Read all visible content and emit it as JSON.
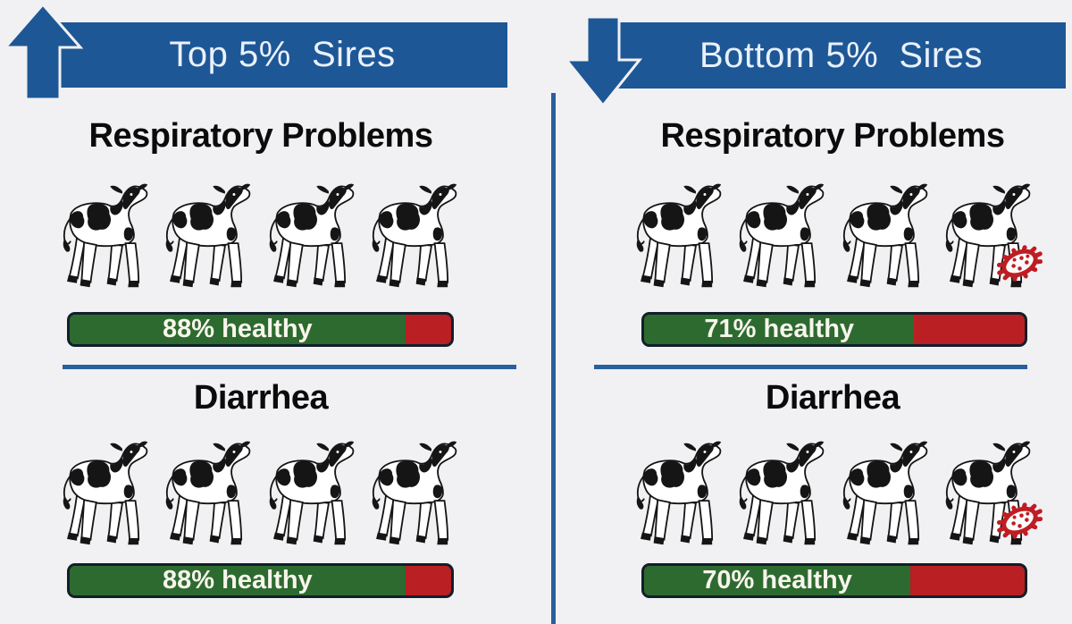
{
  "colors": {
    "bg": "#f1f1f3",
    "blue": "#1E5796",
    "divider": "#2A5F9E",
    "green": "#2D6A2F",
    "red": "#B91F23",
    "barBorder": "#111F2A",
    "barText": "#F7F5EC",
    "germ": "#BF1D23",
    "ink": "#151515"
  },
  "panels": [
    {
      "id": "top-sires",
      "banner": {
        "label": "Top 5%  Sires",
        "arrow_direction": "up"
      },
      "sections": [
        {
          "title": "Respiratory Problems",
          "calf_count": 4,
          "sick_calf": false,
          "bar": {
            "percent": 88,
            "label": "88% healthy"
          }
        },
        {
          "title": "Diarrhea",
          "calf_count": 4,
          "sick_calf": false,
          "bar": {
            "percent": 88,
            "label": "88% healthy"
          }
        }
      ]
    },
    {
      "id": "bottom-sires",
      "banner": {
        "label": "Bottom 5%  Sires",
        "arrow_direction": "down"
      },
      "sections": [
        {
          "title": "Respiratory Problems",
          "calf_count": 4,
          "sick_calf": true,
          "bar": {
            "percent": 71,
            "label": "71% healthy"
          }
        },
        {
          "title": "Diarrhea",
          "calf_count": 4,
          "sick_calf": true,
          "bar": {
            "percent": 70,
            "label": "70% healthy"
          }
        }
      ]
    }
  ],
  "icons": {
    "calf": "holstein-calf-icon",
    "germ": "pathogen-germ-icon",
    "up_arrow": "up-arrow-icon",
    "down_arrow": "down-arrow-icon"
  },
  "chart_data": {
    "type": "bar",
    "categories": [
      "Respiratory Problems",
      "Diarrhea"
    ],
    "series": [
      {
        "name": "Top 5% Sires",
        "values": [
          88,
          88
        ]
      },
      {
        "name": "Bottom 5% Sires",
        "values": [
          71,
          70
        ]
      }
    ],
    "value_label": "% healthy",
    "ylim": [
      0,
      100
    ],
    "notes": "Pictograph infographic: 4 calves per category; bottom-5% panels mark the last calf with a red pathogen icon. Green bar segment = percent healthy, red remainder = percent affected."
  }
}
